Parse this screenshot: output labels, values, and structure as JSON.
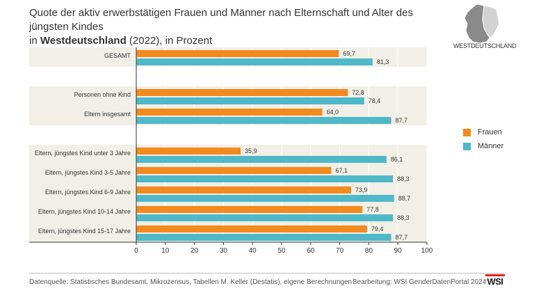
{
  "header": {
    "title_line1": "Quote der aktiv erwerbstätigen Frauen und Männer nach Elternschaft und Alter des jüngsten Kindes",
    "title_prefix": "in ",
    "title_region": "Westdeutschland",
    "title_suffix": " (2022), in Prozent"
  },
  "map": {
    "label": "WESTDEUTSCHLAND",
    "icon": "germany-map-icon"
  },
  "legend": {
    "items": [
      {
        "label": "Frauen",
        "color": "#f28a1e"
      },
      {
        "label": "Männer",
        "color": "#4fb8c9"
      }
    ]
  },
  "chart_data": {
    "type": "bar",
    "orientation": "horizontal",
    "categories": [
      "GESAMT",
      "Personen ohne Kind",
      "Eltern insgesamt",
      "Eltern, jüngstes Kind unter 3 Jahre",
      "Eltern, jüngstes Kind 3-5 Jahre",
      "Eltern, jüngstes Kind 6-9 Jahre",
      "Eltern, jüngstes Kind 10-14 Jahre",
      "Eltern, jüngstes Kind 15-17 Jahre"
    ],
    "groups": [
      [
        0
      ],
      [
        1,
        2
      ],
      [
        3,
        4,
        5,
        6,
        7
      ]
    ],
    "series": [
      {
        "name": "Frauen",
        "color": "#f28a1e",
        "values": [
          69.7,
          72.8,
          64.0,
          35.9,
          67.1,
          73.9,
          77.8,
          79.4
        ],
        "labels": [
          "69,7",
          "72,8",
          "64,0",
          "35,9",
          "67,1",
          "73,9",
          "77,8",
          "79,4"
        ]
      },
      {
        "name": "Männer",
        "color": "#4fb8c9",
        "values": [
          81.3,
          78.4,
          87.7,
          86.1,
          88.3,
          88.7,
          88.3,
          87.7
        ],
        "labels": [
          "81,3",
          "78,4",
          "87,7",
          "86,1",
          "88,3",
          "88,7",
          "88,3",
          "87,7"
        ]
      }
    ],
    "xlim": [
      0,
      100
    ],
    "xticks": [
      "0",
      "10",
      "20",
      "30",
      "40",
      "50",
      "60",
      "70",
      "80",
      "90",
      "100"
    ],
    "title": "Quote der aktiv erwerbstätigen Frauen und Männer nach Elternschaft und Alter des jüngsten Kindes in Westdeutschland (2022), in Prozent",
    "xlabel": "",
    "ylabel": "",
    "grid": true,
    "legend_position": "right"
  },
  "footer": {
    "source": "Datenquelle: Statistisches Bundesamt, Mikrozensus, Tabellen M. Keller (Destatis), eigene Berechnungen",
    "credit": "Bearbeitung: WSI GenderDatenPortal 2024",
    "logo_text": "WSI"
  }
}
